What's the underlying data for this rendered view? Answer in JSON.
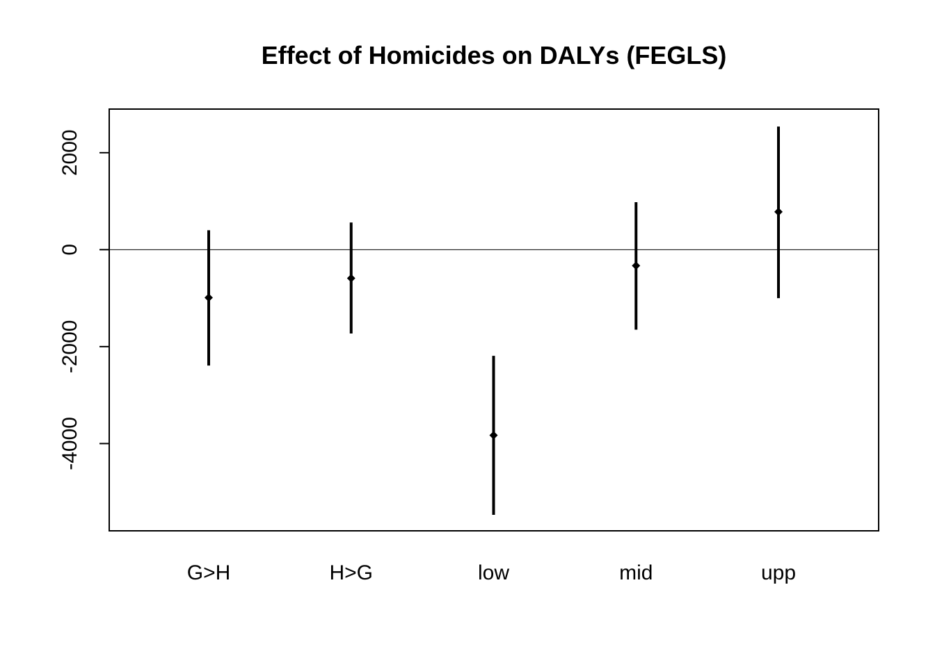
{
  "chart_data": {
    "type": "errorbar",
    "title": "Effect of Homicides on DALYs (FEGLS)",
    "xlabel": "",
    "ylabel": "",
    "categories": [
      "G>H",
      "H>G",
      "low",
      "mid",
      "upp"
    ],
    "estimates": [
      -990,
      -590,
      -3830,
      -330,
      780
    ],
    "lower": [
      -2390,
      -1730,
      -5470,
      -1650,
      -1000
    ],
    "upper": [
      400,
      560,
      -2190,
      980,
      2540
    ],
    "ylim": [
      -5800,
      2900
    ],
    "yticks": [
      {
        "value": -4000,
        "label": "-4000"
      },
      {
        "value": -2000,
        "label": "-2000"
      },
      {
        "value": 0,
        "label": "0"
      },
      {
        "value": 2000,
        "label": "2000"
      }
    ],
    "reference_line": 0,
    "grid": false,
    "legend": "none",
    "color": "#000000"
  }
}
